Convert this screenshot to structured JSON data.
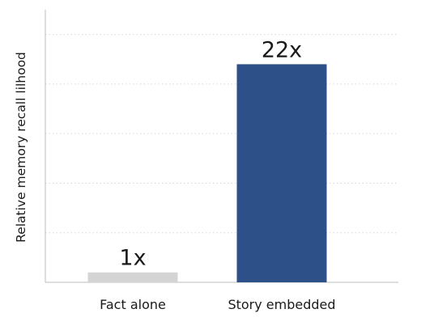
{
  "chart_data": {
    "type": "bar",
    "title": "",
    "xlabel": "",
    "ylabel": "Relative memory recall lilhood",
    "categories": [
      "Fact alone",
      "Story embedded"
    ],
    "values": [
      1,
      22
    ],
    "data_labels": [
      "1x",
      "22x"
    ],
    "colors": [
      "#d4d4d4",
      "#2e5088"
    ],
    "ylim": [
      0,
      27.5
    ],
    "grid": true,
    "grid_style": "dotted",
    "legend": "none"
  }
}
